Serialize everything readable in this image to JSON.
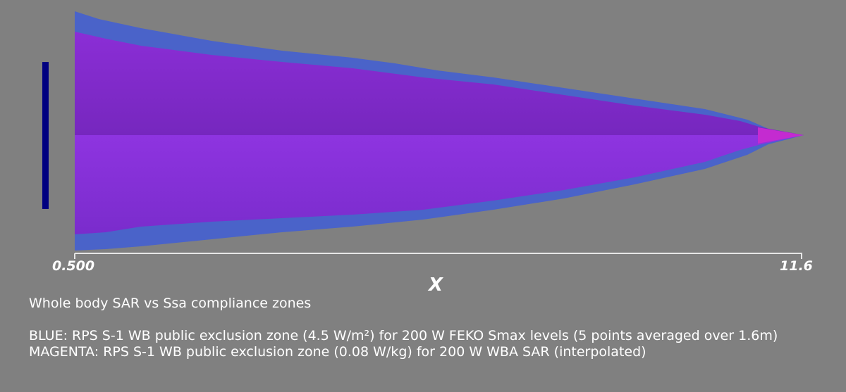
{
  "axis": {
    "title": "X",
    "min_label": "0.500",
    "max_label": "11.6",
    "range": [
      0.5,
      11.6
    ]
  },
  "captions": {
    "title": "Whole body SAR vs Ssa compliance zones",
    "blue_line": "BLUE: RPS S-1 WB public exclusion zone (4.5 W/m²) for 200 W FEKO Smax levels (5 points averaged over 1.6m)",
    "magenta_line": "MAGENTA: RPS S-1 WB public exclusion zone (0.08 W/kg) for 200 W WBA SAR (interpolated)"
  },
  "colors": {
    "background": "#808080",
    "blue_zone": "#4a63c9",
    "magenta_zone": "#8a2fd8",
    "magenta_tip": "#c42bd0",
    "scale_bar": "#000080",
    "axis": "#e6e6e6"
  }
}
